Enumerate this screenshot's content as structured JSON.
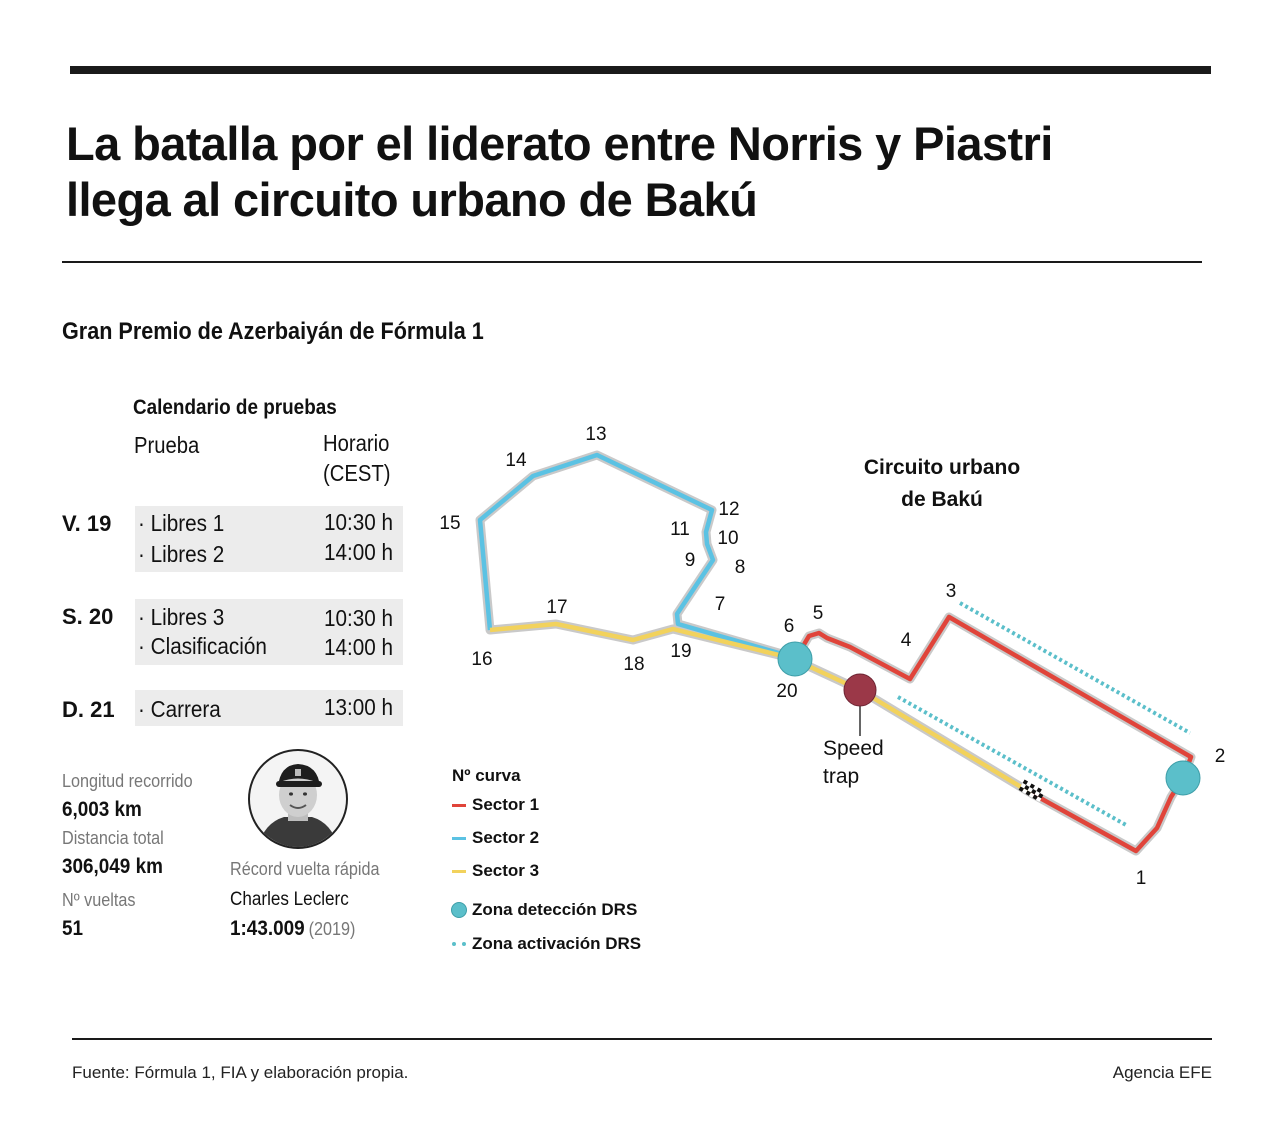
{
  "headline": "La batalla por el liderato entre Norris y Piastri llega al circuito urbano de Bakú",
  "subtitle": "Gran Premio de Azerbaiyán de Fórmula 1",
  "calendar": {
    "title": "Calendario de pruebas",
    "col_event": "Prueba",
    "col_time_1": "Horario",
    "col_time_2": "(CEST)",
    "days": [
      {
        "day": "V. 19",
        "events": [
          {
            "name": "· Libres 1",
            "time": "10:30 h"
          },
          {
            "name": "· Libres 2",
            "time": "14:00 h"
          }
        ]
      },
      {
        "day": "S. 20",
        "events": [
          {
            "name": "· Libres 3",
            "time": "10:30 h"
          },
          {
            "name": "· Clasificación",
            "time": "14:00 h"
          }
        ]
      },
      {
        "day": "D. 21",
        "events": [
          {
            "name": "·  Carrera",
            "time": "13:00 h"
          }
        ]
      }
    ]
  },
  "stats": {
    "length_label": "Longitud recorrido",
    "length_value": "6,003 km",
    "distance_label": "Distancia total",
    "distance_value": "306,049 km",
    "laps_label": "Nº vueltas",
    "laps_value": "51",
    "record_label": "Récord vuelta rápida",
    "record_driver": "Charles Leclerc",
    "record_time": "1:43.009",
    "record_year": "(2019)"
  },
  "map": {
    "title_line1": "Circuito urbano",
    "title_line2": "de Bakú",
    "speed_trap_line1": "Speed",
    "speed_trap_line2": "trap",
    "corners": [
      "1",
      "2",
      "3",
      "4",
      "5",
      "6",
      "7",
      "8",
      "9",
      "10",
      "11",
      "12",
      "13",
      "14",
      "15",
      "16",
      "17",
      "18",
      "19",
      "20"
    ]
  },
  "legend": {
    "title": "Nº curva",
    "sector1": "Sector 1",
    "sector2": "Sector 2",
    "sector3": "Sector 3",
    "drs_detection": "Zona detección DRS",
    "drs_activation": "Zona activación DRS"
  },
  "colors": {
    "sector1": "#e0443a",
    "sector2": "#5bc2e3",
    "sector3": "#f2d25c",
    "drs": "#5bbfca",
    "speed_trap": "#9b3848",
    "track_outline": "#c9c9c9"
  },
  "footer": {
    "source": "Fuente: Fórmula 1, FIA y elaboración propia.",
    "agency": "Agencia EFE"
  }
}
